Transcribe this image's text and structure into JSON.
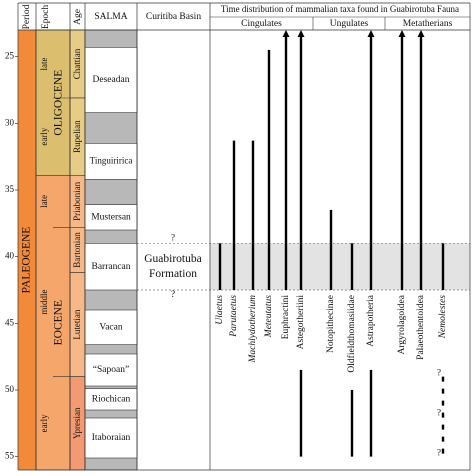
{
  "chart_data": {
    "type": "range",
    "ylim": [
      23,
      56
    ],
    "yticks": [
      25,
      30,
      35,
      40,
      45,
      50,
      55
    ],
    "headers": {
      "period": "Period",
      "epoch": "Epoch",
      "age": "Age",
      "salma": "SALMA",
      "basin": "Curitiba Basin",
      "taxa": "Time distribution of mammalian taxa found in Guabirotuba Fauna"
    },
    "period": {
      "name": "PALEOGENE",
      "top": 23,
      "base": 56,
      "color": "#f28a3a"
    },
    "epochs": [
      {
        "name": "OLIGOCENE",
        "top": 23,
        "base": 33.9,
        "color": "#dcbf6e",
        "subdivisions": [
          {
            "name": "late",
            "top": 23,
            "base": 28.1
          },
          {
            "name": "early",
            "top": 28.1,
            "base": 33.9
          }
        ]
      },
      {
        "name": "EOCENE",
        "top": 33.9,
        "base": 56,
        "color": "#f5a66b",
        "subdivisions": [
          {
            "name": "late",
            "top": 33.9,
            "base": 37.8
          },
          {
            "name": "middle",
            "top": 37.8,
            "base": 49
          },
          {
            "name": "early",
            "top": 49,
            "base": 56
          }
        ]
      }
    ],
    "ages": [
      {
        "name": "Chattian",
        "top": 23,
        "base": 28.1,
        "color": "#e6cc84"
      },
      {
        "name": "Rupelian",
        "top": 28.1,
        "base": 33.9,
        "color": "#e6cc84"
      },
      {
        "name": "Priabonian",
        "top": 33.9,
        "base": 37.8,
        "color": "#f7b888"
      },
      {
        "name": "Bartonian",
        "top": 37.8,
        "base": 41.2,
        "color": "#f7b888"
      },
      {
        "name": "Lutetian",
        "top": 41.2,
        "base": 49,
        "color": "#f7b888"
      },
      {
        "name": "Ypresian",
        "top": 49,
        "base": 56,
        "color": "#f29a72"
      }
    ],
    "salma": [
      {
        "name": "Deseadan",
        "top": 24.3,
        "base": 29.2
      },
      {
        "name": "Tinguiririca",
        "top": 31.5,
        "base": 34.2
      },
      {
        "name": "Mustersan",
        "top": 36.1,
        "base": 38
      },
      {
        "name": "Barrancan",
        "top": 39,
        "base": 42.5
      },
      {
        "name": "Vacan",
        "top": 44,
        "base": 46.6
      },
      {
        "name": "“Sapoan”",
        "top": 47.3,
        "base": 49.7
      },
      {
        "name": "Riochican",
        "top": 49.9,
        "base": 51.5
      },
      {
        "name": "Itaboraian",
        "top": 52.1,
        "base": 55.1
      }
    ],
    "formation": {
      "name_lines": [
        "Guabirotuba",
        "Formation"
      ],
      "top": 39,
      "base": 42.5,
      "uncertain": "?"
    },
    "groups": [
      {
        "name": "Cingulates",
        "taxa": [
          {
            "name": "Ulaetus",
            "italic": true,
            "ranges": [
              [
                39,
                42.5
              ]
            ]
          },
          {
            "name": "Parutaetus",
            "italic": true,
            "ranges": [
              [
                31.3,
                42.5
              ]
            ]
          },
          {
            "name": "Machlydotherium",
            "italic": true,
            "ranges": [
              [
                31.3,
                42.5
              ]
            ]
          },
          {
            "name": "Meteutatus",
            "italic": true,
            "ranges": [
              [
                24.5,
                42.5
              ]
            ]
          },
          {
            "name": "Euphractini",
            "italic": false,
            "arrow": true,
            "ranges": [
              [
                23,
                42.5
              ]
            ]
          },
          {
            "name": "Astegotheriini",
            "italic": false,
            "arrow": true,
            "ranges": [
              [
                23,
                42.5
              ],
              [
                48.5,
                55
              ]
            ]
          }
        ]
      },
      {
        "name": "Ungulates",
        "taxa": [
          {
            "name": "Notopithecinae",
            "italic": false,
            "ranges": [
              [
                36.5,
                42.5
              ]
            ]
          },
          {
            "name": "Oldfieldthomasiidae",
            "italic": false,
            "ranges": [
              [
                39,
                42.5
              ],
              [
                50,
                55
              ]
            ]
          },
          {
            "name": "Astrapotheria",
            "italic": false,
            "arrow": true,
            "ranges": [
              [
                23,
                42.5
              ],
              [
                48.5,
                55
              ]
            ]
          }
        ]
      },
      {
        "name": "Metatherians",
        "taxa": [
          {
            "name": "Argyrolagoidea",
            "italic": false,
            "arrow": true,
            "ranges": [
              [
                23,
                42.5
              ]
            ]
          },
          {
            "name": "Palaeothentoidea",
            "italic": false,
            "arrow": true,
            "ranges": [
              [
                23,
                42.5
              ]
            ]
          },
          {
            "name": "Nemolestes",
            "italic": true,
            "ranges": [
              [
                39,
                42.5
              ]
            ],
            "uncertain_ranges": [
              [
                49,
                55
              ]
            ],
            "uncertain_mark": "?"
          }
        ]
      }
    ]
  }
}
